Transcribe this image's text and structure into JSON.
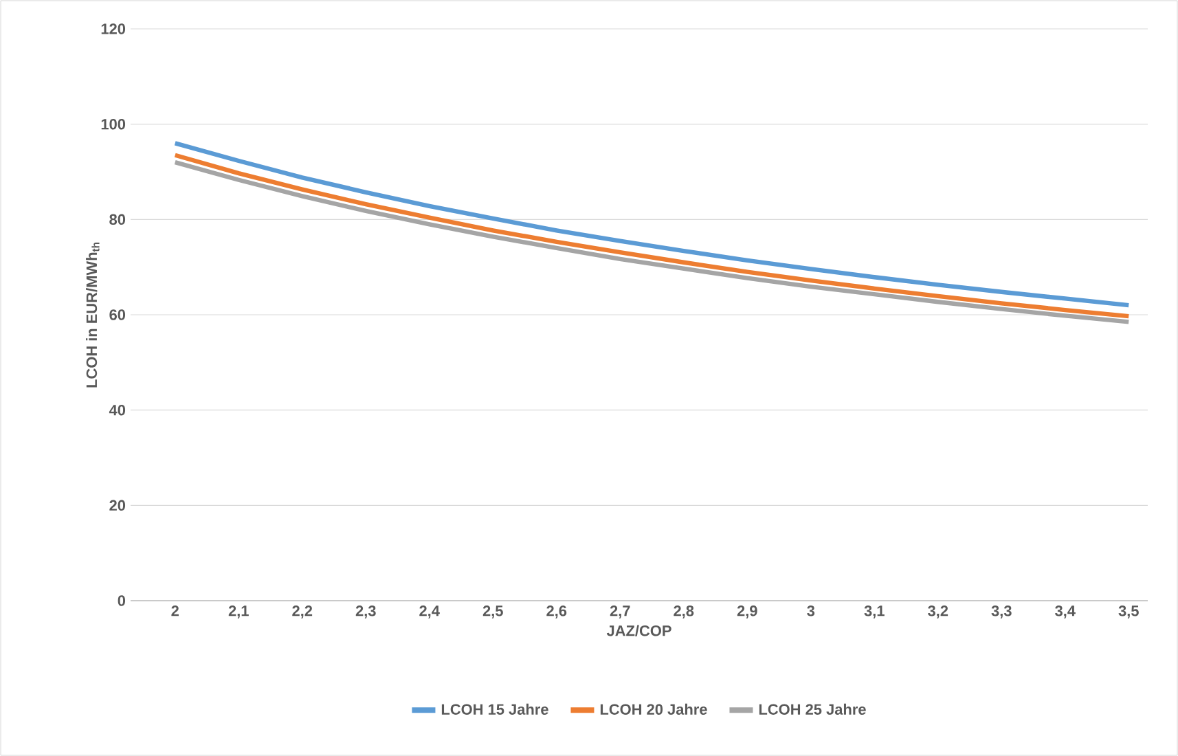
{
  "chart_data": {
    "type": "line",
    "xlabel": "JAZ/COP",
    "ylabel": "LCOH in EUR/MWh$_{th}$",
    "categories": [
      "2",
      "2,1",
      "2,2",
      "2,3",
      "2,4",
      "2,5",
      "2,6",
      "2,7",
      "2,8",
      "2,9",
      "3",
      "3,1",
      "3,2",
      "3,3",
      "3,4",
      "3,5"
    ],
    "series": [
      {
        "name": "LCOH 15 Jahre",
        "color": "#5b9bd5",
        "values": [
          96.0,
          92.3,
          88.8,
          85.7,
          82.8,
          80.2,
          77.7,
          75.5,
          73.4,
          71.4,
          69.6,
          67.9,
          66.3,
          64.8,
          63.4,
          62.0
        ]
      },
      {
        "name": "LCOH 20 Jahre",
        "color": "#ed7d31",
        "values": [
          93.5,
          89.7,
          86.3,
          83.2,
          80.4,
          77.7,
          75.3,
          73.1,
          71.0,
          69.0,
          67.2,
          65.5,
          63.9,
          62.4,
          61.0,
          59.7
        ]
      },
      {
        "name": "LCOH 25 Jahre",
        "color": "#a5a5a5",
        "values": [
          92.0,
          88.3,
          84.9,
          81.8,
          79.0,
          76.4,
          74.0,
          71.7,
          69.7,
          67.7,
          65.9,
          64.3,
          62.7,
          61.2,
          59.8,
          58.5
        ]
      }
    ],
    "ylim": [
      0,
      120
    ],
    "yticks": [
      0,
      20,
      40,
      60,
      80,
      100,
      120
    ],
    "grid": "y",
    "legend": "bottom",
    "marker": "none",
    "line_style": "solid"
  }
}
